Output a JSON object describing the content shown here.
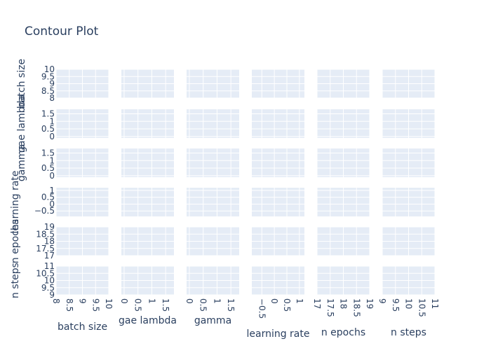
{
  "chart_data": {
    "type": "heatmap",
    "title": "Contour Plot",
    "variables": [
      "batch size",
      "gae lambda",
      "gamma",
      "learning rate",
      "n epochs",
      "n steps"
    ],
    "x_axes": [
      {
        "label": "batch size",
        "range": [
          8,
          10
        ],
        "ticks": [
          "8",
          "8.5",
          "9",
          "9.5",
          "10"
        ]
      },
      {
        "label": "gae lambda",
        "range": [
          -0.1,
          1.8
        ],
        "ticks": [
          "0",
          "0.5",
          "1",
          "1.5"
        ]
      },
      {
        "label": "gamma",
        "range": [
          -0.1,
          1.8
        ],
        "ticks": [
          "0",
          "0.5",
          "1",
          "1.5"
        ]
      },
      {
        "label": "learning rate",
        "range": [
          -0.9,
          1.2
        ],
        "ticks": [
          "−0.5",
          "0",
          "0.5",
          "1"
        ]
      },
      {
        "label": "n epochs",
        "range": [
          17,
          19
        ],
        "ticks": [
          "17",
          "17.5",
          "18",
          "18.5",
          "19"
        ]
      },
      {
        "label": "n steps",
        "range": [
          9,
          11
        ],
        "ticks": [
          "9",
          "9.5",
          "10",
          "10.5",
          "11"
        ]
      }
    ],
    "y_axes": [
      {
        "label": "batch size",
        "range": [
          8,
          10
        ],
        "ticks": [
          "8",
          "8.5",
          "9",
          "9.5",
          "10"
        ]
      },
      {
        "label": "gae lambda",
        "range": [
          -0.1,
          1.8
        ],
        "ticks": [
          "0",
          "0.5",
          "1",
          "1.5"
        ]
      },
      {
        "label": "gamma",
        "range": [
          -0.1,
          1.8
        ],
        "ticks": [
          "0",
          "0.5",
          "1",
          "1.5"
        ]
      },
      {
        "label": "learning rate",
        "range": [
          -0.9,
          1.2
        ],
        "ticks": [
          "−0.5",
          "0",
          "0.5",
          "1"
        ]
      },
      {
        "label": "n epochs",
        "range": [
          17,
          19
        ],
        "ticks": [
          "17",
          "17.5",
          "18",
          "18.5",
          "19"
        ]
      },
      {
        "label": "n steps",
        "range": [
          9,
          11
        ],
        "ticks": [
          "9",
          "9.5",
          "10",
          "10.5",
          "11"
        ]
      }
    ],
    "grid": true,
    "plot_background": "#e5ecf6",
    "text_color": "#2a3f5f",
    "gridline_color": "#ffffff"
  }
}
